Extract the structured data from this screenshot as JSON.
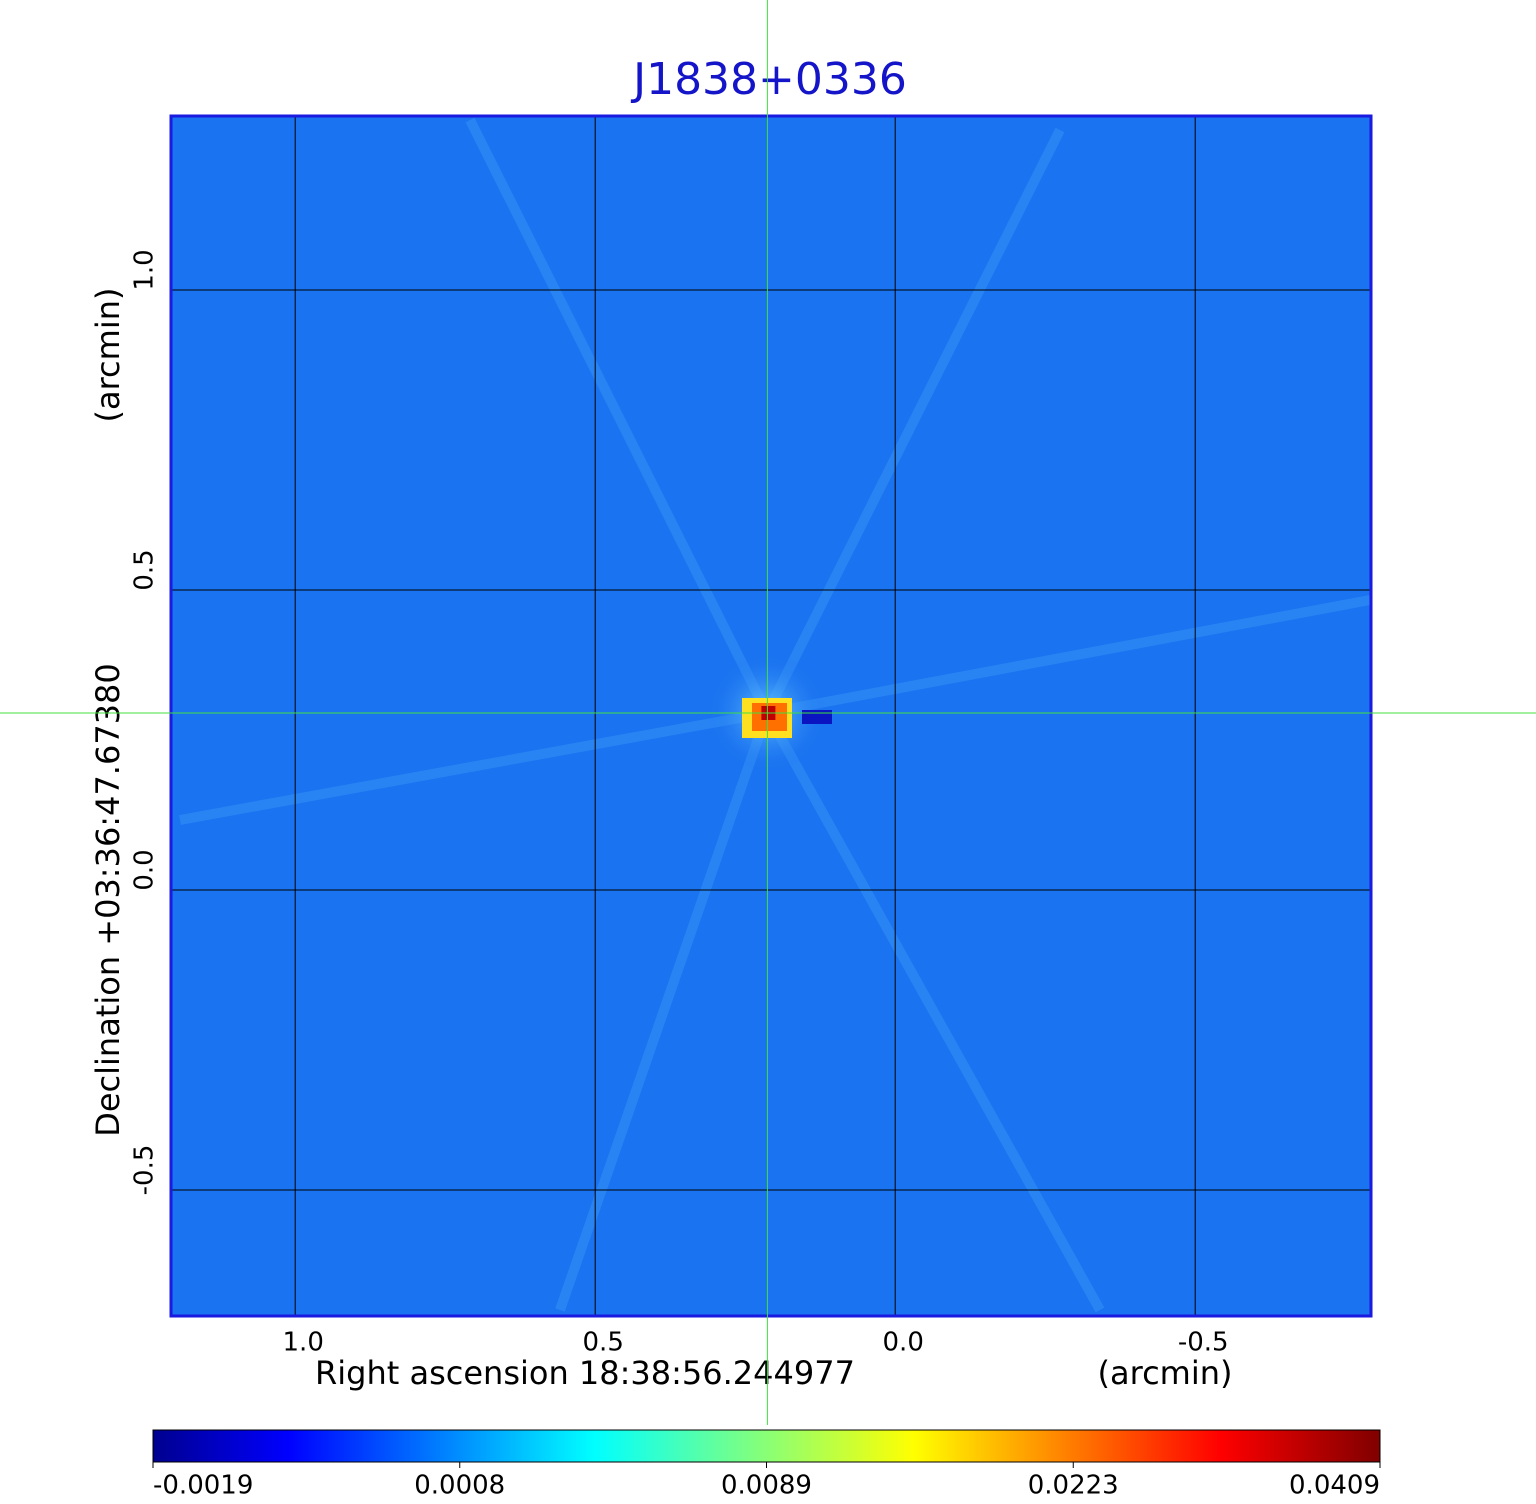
{
  "chart_data": {
    "type": "image",
    "title": "J1838+0336",
    "xlabel": "Right ascension  18:38:56.244977",
    "xunit": "(arcmin)",
    "ylabel": "Declination  +03:36:47.67380",
    "yunit": "(arcmin)",
    "xlim": [
      1.207,
      -0.793
    ],
    "ylim": [
      -0.71,
      1.29
    ],
    "xticks": [
      {
        "value": 1.0,
        "label": "1.0"
      },
      {
        "value": 0.5,
        "label": "0.5"
      },
      {
        "value": 0.0,
        "label": "0.0"
      },
      {
        "value": -0.5,
        "label": "-0.5"
      }
    ],
    "yticks": [
      {
        "value": -0.5,
        "label": "-0.5"
      },
      {
        "value": 0.0,
        "label": "0.0"
      },
      {
        "value": 0.5,
        "label": "0.5"
      },
      {
        "value": 1.0,
        "label": "1.0"
      }
    ],
    "grid": true,
    "colormap": "jet",
    "crosshair": {
      "x": 0.213,
      "y": 0.295,
      "color": "#40e040"
    },
    "peak": 0.0409,
    "colorbar_ticks": [
      -0.0019,
      0.0008,
      0.0089,
      0.0223,
      0.0409
    ]
  }
}
